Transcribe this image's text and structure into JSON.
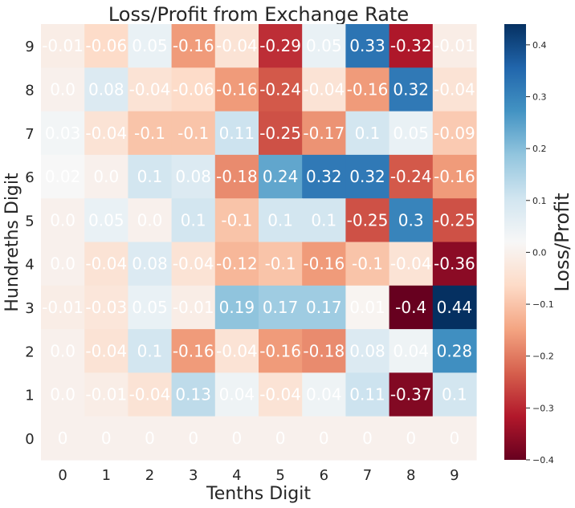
{
  "chart_data": {
    "type": "heatmap",
    "title": "Loss/Profit from Exchange Rate",
    "xlabel": "Tenths Digit",
    "ylabel": "Hundreths Digit",
    "x_categories": [
      "0",
      "1",
      "2",
      "3",
      "4",
      "5",
      "6",
      "7",
      "8",
      "9"
    ],
    "y_categories": [
      "9",
      "8",
      "7",
      "6",
      "5",
      "4",
      "3",
      "2",
      "1",
      "0"
    ],
    "values": [
      [
        "-0.01",
        "-0.06",
        "0.05",
        "-0.16",
        "-0.04",
        "-0.29",
        "0.05",
        "0.33",
        "-0.32",
        "-0.01"
      ],
      [
        "0.0",
        "0.08",
        "-0.04",
        "-0.06",
        "-0.16",
        "-0.24",
        "-0.04",
        "-0.16",
        "0.32",
        "-0.04"
      ],
      [
        "0.03",
        "-0.04",
        "-0.1",
        "-0.1",
        "0.11",
        "-0.25",
        "-0.17",
        "0.1",
        "0.05",
        "-0.09"
      ],
      [
        "0.02",
        "0.0",
        "0.1",
        "0.08",
        "-0.18",
        "0.24",
        "0.32",
        "0.32",
        "-0.24",
        "-0.16"
      ],
      [
        "0.0",
        "0.05",
        "0.0",
        "0.1",
        "-0.1",
        "0.1",
        "0.1",
        "-0.25",
        "0.3",
        "-0.25"
      ],
      [
        "0.0",
        "-0.04",
        "0.08",
        "-0.04",
        "-0.12",
        "-0.1",
        "-0.16",
        "-0.1",
        "-0.04",
        "-0.36"
      ],
      [
        "-0.01",
        "-0.03",
        "0.05",
        "-0.01",
        "0.19",
        "0.17",
        "0.17",
        "0.01",
        "-0.4",
        "0.44"
      ],
      [
        "0.0",
        "-0.04",
        "0.1",
        "-0.16",
        "-0.04",
        "-0.16",
        "-0.18",
        "0.08",
        "0.04",
        "0.28"
      ],
      [
        "0.0",
        "-0.01",
        "-0.04",
        "0.13",
        "0.04",
        "-0.04",
        "0.04",
        "0.11",
        "-0.37",
        "0.1"
      ],
      [
        "0",
        "0",
        "0",
        "0",
        "0",
        "0",
        "0",
        "0",
        "0",
        "0"
      ]
    ],
    "colorbar": {
      "label": "Loss/Profit",
      "min": -0.4,
      "max": 0.44,
      "ticks": [
        "0.4",
        "0.3",
        "0.2",
        "0.1",
        "0.0",
        "−0.1",
        "−0.2",
        "−0.3",
        "−0.4"
      ],
      "tick_values": [
        0.4,
        0.3,
        0.2,
        0.1,
        0.0,
        -0.1,
        -0.2,
        -0.3,
        -0.4
      ],
      "colormap": "RdBu"
    },
    "grid": false
  }
}
